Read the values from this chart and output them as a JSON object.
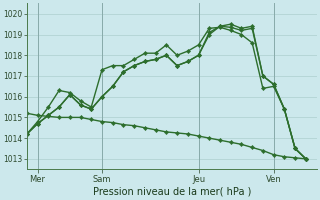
{
  "background_color": "#cce8ec",
  "grid_color": "#aacccc",
  "line_color": "#2d6e2d",
  "xlabel": "Pression niveau de la mer( hPa )",
  "ylim": [
    1012.5,
    1020.5
  ],
  "yticks": [
    1013,
    1014,
    1015,
    1016,
    1017,
    1018,
    1019,
    1020
  ],
  "xlim": [
    0,
    27
  ],
  "day_ticks": [
    1,
    7,
    16,
    23
  ],
  "day_labels": [
    "Mer",
    "Sam",
    "Jeu",
    "Ven"
  ],
  "series": [
    [
      1014.2,
      1014.8,
      1015.5,
      1016.3,
      1016.2,
      1015.8,
      1015.5,
      1017.3,
      1017.5,
      1017.5,
      1017.8,
      1018.1,
      1018.1,
      1018.5,
      1018.0,
      1018.2,
      1018.5,
      1019.3,
      1019.35,
      1019.2,
      1019.0,
      1018.6,
      1016.4,
      1016.5,
      1015.4,
      1013.5,
      1013.0
    ],
    [
      1014.2,
      1014.7,
      1015.1,
      1015.5,
      1016.1,
      1015.6,
      1015.4,
      1016.0,
      1016.5,
      1017.2,
      1017.5,
      1017.7,
      1017.8,
      1018.0,
      1017.5,
      1017.7,
      1018.0,
      1019.1,
      1019.4,
      1019.35,
      1019.2,
      1019.3,
      1017.0,
      1016.6,
      1015.4,
      1013.5,
      1013.0
    ],
    [
      1014.2,
      1014.7,
      1015.1,
      1015.5,
      1016.1,
      1015.6,
      1015.4,
      1016.0,
      1016.5,
      1017.2,
      1017.5,
      1017.7,
      1017.8,
      1018.0,
      1017.5,
      1017.7,
      1018.0,
      1019.0,
      1019.4,
      1019.5,
      1019.3,
      1019.4,
      1017.0,
      1016.6,
      1015.4,
      1013.5,
      1013.0
    ],
    [
      1015.2,
      1015.1,
      1015.05,
      1015.0,
      1015.0,
      1015.0,
      1014.9,
      1014.8,
      1014.75,
      1014.65,
      1014.6,
      1014.5,
      1014.4,
      1014.3,
      1014.25,
      1014.2,
      1014.1,
      1014.0,
      1013.9,
      1013.8,
      1013.7,
      1013.55,
      1013.4,
      1013.2,
      1013.1,
      1013.05,
      1013.0
    ]
  ],
  "n_points": 27,
  "marker": "D",
  "markersize": 2.2,
  "linewidth": 1.0
}
